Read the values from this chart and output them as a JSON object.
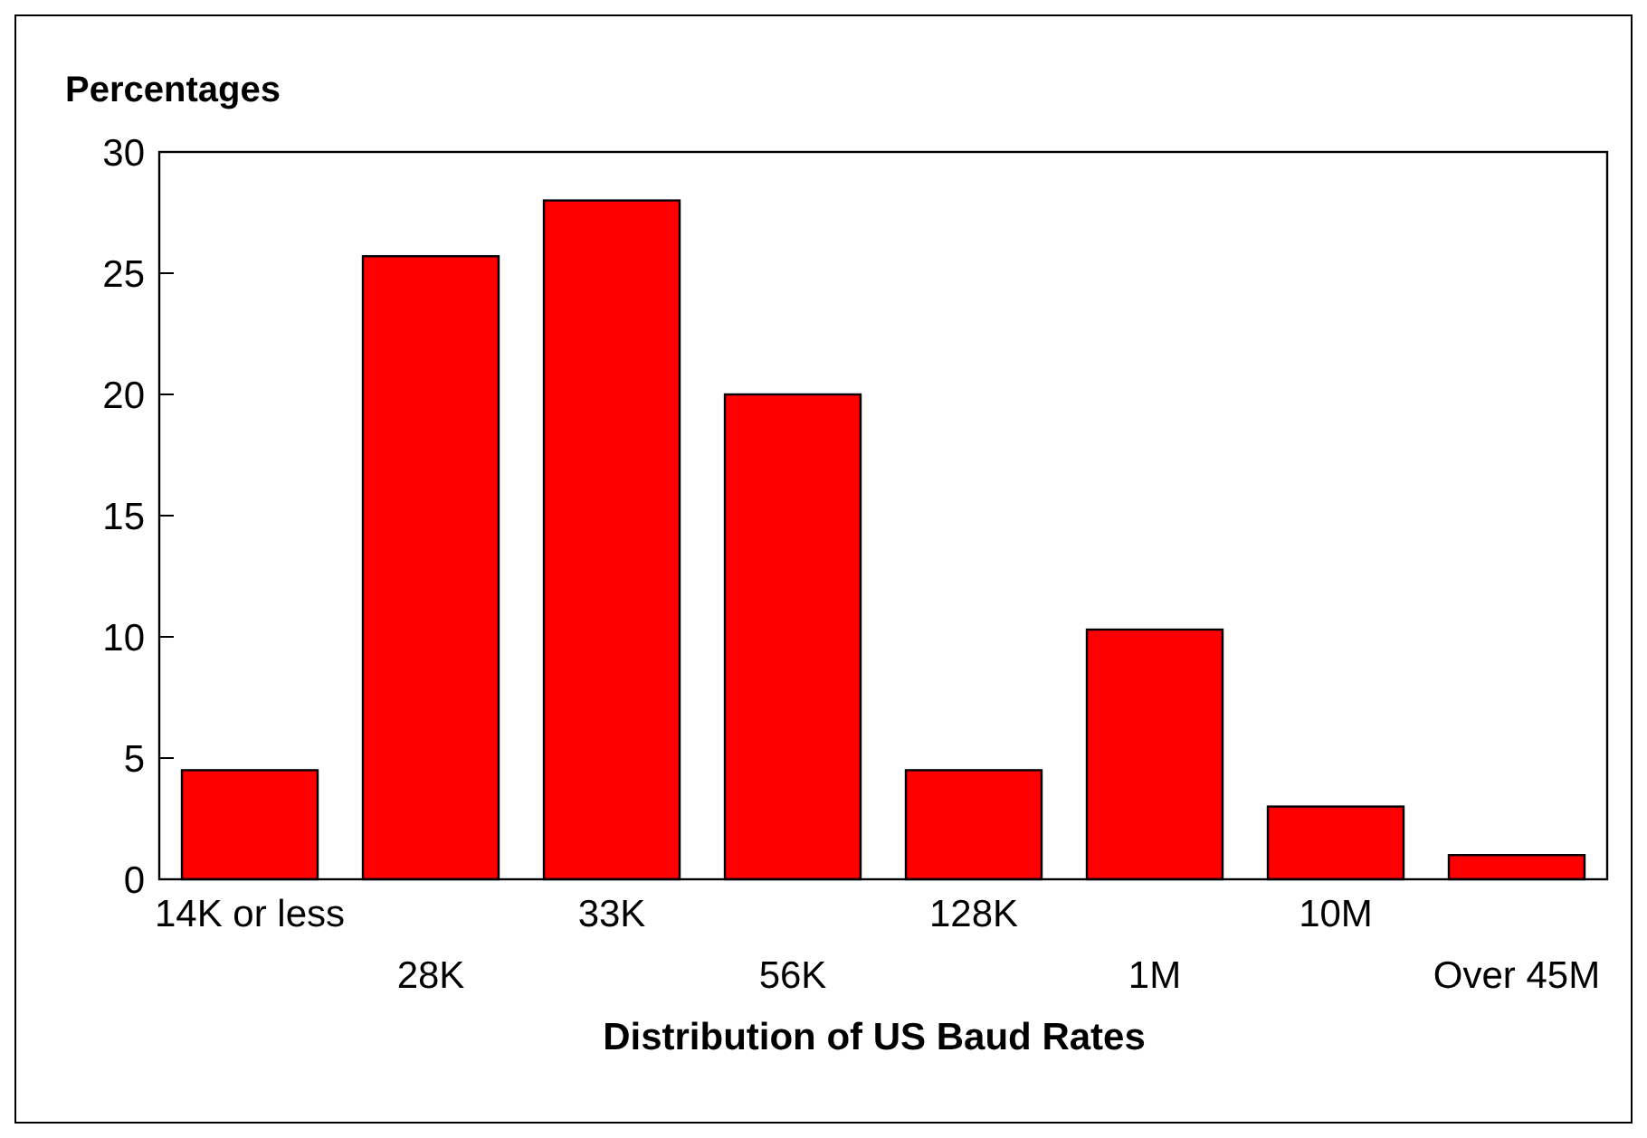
{
  "chart_data": {
    "type": "bar",
    "xlabel": "Distribution of US Baud Rates",
    "ylabel": "Percentages",
    "categories": [
      "14K or less",
      "28K",
      "33K",
      "56K",
      "128K",
      "1M",
      "10M",
      "Over 45M"
    ],
    "values": [
      4.5,
      25.7,
      28,
      20,
      4.5,
      10.3,
      3,
      1
    ],
    "color": "#ff0000",
    "ylim": [
      0,
      30
    ],
    "yticks": [
      0,
      5,
      10,
      15,
      20,
      25,
      30
    ],
    "grid": false
  }
}
